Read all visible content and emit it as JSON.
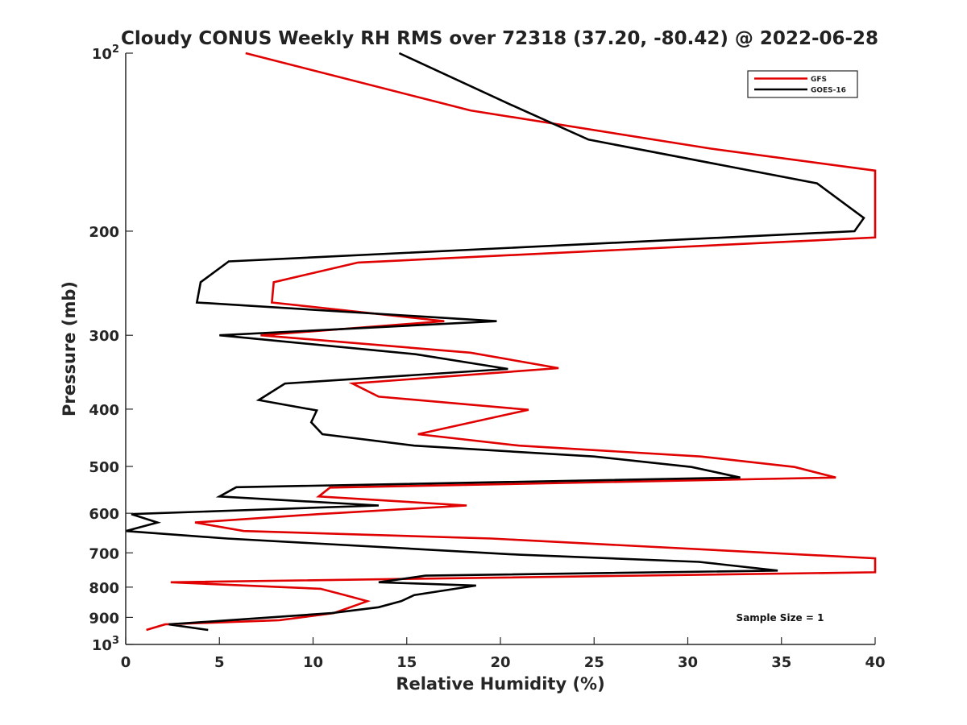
{
  "chart_data": {
    "type": "line",
    "title": "Cloudy CONUS Weekly RH RMS over 72318 (37.20, -80.42) @ 2022-06-28",
    "xlabel": "Relative Humidity (%)",
    "ylabel": "Pressure (mb)",
    "xlim": [
      0,
      40
    ],
    "ylim": [
      100,
      1000
    ],
    "y_scale": "log",
    "y_reversed": true,
    "x_ticks": [
      0,
      5,
      10,
      15,
      20,
      25,
      30,
      35,
      40
    ],
    "x_tick_labels": [
      "0",
      "5",
      "10",
      "15",
      "20",
      "25",
      "30",
      "35",
      "40"
    ],
    "y_ticks": [
      100,
      200,
      300,
      400,
      500,
      600,
      700,
      800,
      900,
      1000
    ],
    "y_tick_labels": [
      "10²",
      "200",
      "300",
      "400",
      "500",
      "600",
      "700",
      "800",
      "900",
      "10³"
    ],
    "legend": {
      "placement": "top-right",
      "entries": [
        "GFS",
        "GOES-16"
      ]
    },
    "annotation": "Sample Size = 1",
    "series": [
      {
        "name": "GFS",
        "color": "#e00000",
        "points": [
          [
            6.4,
            100
          ],
          [
            18.4,
            125
          ],
          [
            31.2,
            145
          ],
          [
            40.0,
            158
          ],
          [
            40.0,
            205
          ],
          [
            12.4,
            226
          ],
          [
            7.9,
            244
          ],
          [
            7.8,
            264
          ],
          [
            17.0,
            284
          ],
          [
            7.2,
            300
          ],
          [
            18.4,
            321
          ],
          [
            23.1,
            341
          ],
          [
            12.1,
            362
          ],
          [
            13.5,
            381
          ],
          [
            21.5,
            401
          ],
          [
            15.6,
            441
          ],
          [
            21.0,
            461
          ],
          [
            30.7,
            481
          ],
          [
            35.7,
            501
          ],
          [
            37.9,
            522
          ],
          [
            10.9,
            543
          ],
          [
            10.3,
            562
          ],
          [
            18.2,
            582
          ],
          [
            10.3,
            602
          ],
          [
            3.7,
            622
          ],
          [
            6.3,
            643
          ],
          [
            19.5,
            662
          ],
          [
            40.0,
            715
          ],
          [
            40.0,
            755
          ],
          [
            2.4,
            785
          ],
          [
            10.4,
            805
          ],
          [
            11.7,
            825
          ],
          [
            12.9,
            845
          ],
          [
            11.1,
            885
          ],
          [
            8.2,
            910
          ],
          [
            2.1,
            925
          ],
          [
            1.1,
            945
          ]
        ]
      },
      {
        "name": "GOES-16",
        "color": "#000000",
        "points": [
          [
            14.6,
            100
          ],
          [
            20.5,
            122
          ],
          [
            24.7,
            140
          ],
          [
            36.9,
            166
          ],
          [
            39.4,
            190
          ],
          [
            38.9,
            200
          ],
          [
            5.5,
            225
          ],
          [
            4.0,
            244
          ],
          [
            3.8,
            264
          ],
          [
            19.8,
            284
          ],
          [
            5.0,
            300
          ],
          [
            15.5,
            323
          ],
          [
            20.4,
            342
          ],
          [
            8.5,
            362
          ],
          [
            7.1,
            386
          ],
          [
            10.2,
            402
          ],
          [
            9.9,
            421
          ],
          [
            10.5,
            441
          ],
          [
            15.4,
            461
          ],
          [
            25.0,
            481
          ],
          [
            30.2,
            501
          ],
          [
            32.8,
            522
          ],
          [
            5.9,
            542
          ],
          [
            5.0,
            562
          ],
          [
            13.5,
            582
          ],
          [
            0.3,
            602
          ],
          [
            1.7,
            622
          ],
          [
            0.0,
            643
          ],
          [
            5.4,
            662
          ],
          [
            21.0,
            705
          ],
          [
            30.6,
            725
          ],
          [
            34.8,
            750
          ],
          [
            16.0,
            765
          ],
          [
            13.5,
            785
          ],
          [
            18.7,
            795
          ],
          [
            15.4,
            825
          ],
          [
            14.7,
            845
          ],
          [
            13.5,
            865
          ],
          [
            11.0,
            885
          ],
          [
            2.3,
            925
          ],
          [
            4.4,
            945
          ]
        ]
      }
    ]
  }
}
